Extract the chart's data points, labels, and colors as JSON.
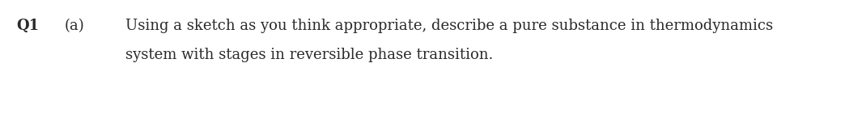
{
  "background_color": "#ffffff",
  "q_label": "Q1",
  "part_label": "(a)",
  "line1": "Using a sketch as you think appropriate, describe a pure substance in thermodynamics",
  "line2": "system with stages in reversible phase transition.",
  "text_color": "#2a2a2a",
  "font_family": "DejaVu Serif",
  "fontsize": 13.0,
  "fig_width": 10.65,
  "fig_height": 1.72,
  "dpi": 100
}
